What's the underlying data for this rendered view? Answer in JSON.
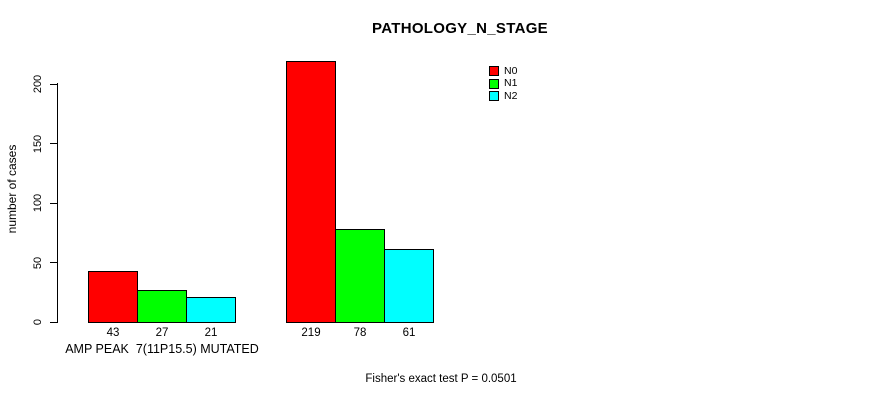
{
  "chart_data": {
    "type": "bar",
    "title": "PATHOLOGY_N_STAGE",
    "xlabel": "",
    "ylabel": "number of cases",
    "ylim": [
      0,
      220
    ],
    "yticks": [
      0,
      50,
      100,
      150,
      200
    ],
    "grid": false,
    "categories": [
      "AMP PEAK  7(11P15.5) MUTATED",
      ""
    ],
    "series": [
      {
        "name": "N0",
        "color": "#FF0000",
        "values": [
          43,
          219
        ]
      },
      {
        "name": "N1",
        "color": "#00FF00",
        "values": [
          27,
          78
        ]
      },
      {
        "name": "N2",
        "color": "#00FFFF",
        "values": [
          21,
          61
        ]
      }
    ],
    "bar_value_labels": [
      [
        43,
        27,
        21
      ],
      [
        219,
        78,
        61
      ]
    ],
    "legend": {
      "position": "top-right",
      "entries": [
        {
          "label": "N0",
          "color": "#FF0000"
        },
        {
          "label": "N1",
          "color": "#00FF00"
        },
        {
          "label": "N2",
          "color": "#00FFFF"
        }
      ]
    },
    "annotation": "Fisher's exact test P = 0.0501"
  }
}
